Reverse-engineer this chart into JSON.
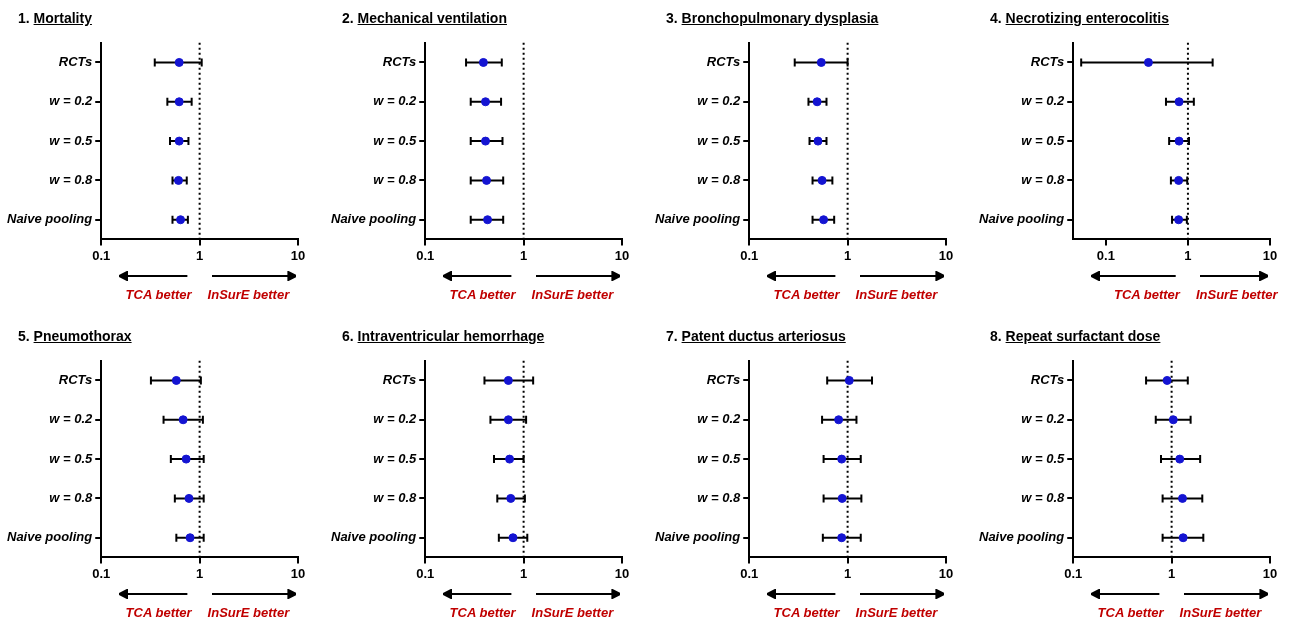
{
  "chart_data": [
    {
      "type": "scatter",
      "title": "1. Mortality",
      "orientation": "horizontal",
      "categories": [
        "RCTs",
        "w = 0.2",
        "w = 0.5",
        "w = 0.8",
        "Naive pooling"
      ],
      "values": [
        0.62,
        0.62,
        0.62,
        0.61,
        0.64
      ],
      "errors": [
        [
          0.35,
          1.05
        ],
        [
          0.47,
          0.83
        ],
        [
          0.5,
          0.77
        ],
        [
          0.53,
          0.74
        ],
        [
          0.53,
          0.76
        ]
      ],
      "color": "#1414d2",
      "marker": "circle",
      "log": "x",
      "xlim": [
        0.1,
        10
      ],
      "xticks": [
        0.1,
        1,
        10
      ],
      "grid": false,
      "legend": false,
      "ref_lines": [
        {
          "axis": "x",
          "value": 1,
          "line_style": "dotted",
          "color": "#000000"
        }
      ],
      "annotations": [
        "TCA better",
        "InSurE better"
      ]
    },
    {
      "type": "scatter",
      "title": "2. Mechanical ventilation",
      "orientation": "horizontal",
      "categories": [
        "RCTs",
        "w = 0.2",
        "w = 0.5",
        "w = 0.8",
        "Naive pooling"
      ],
      "values": [
        0.39,
        0.41,
        0.41,
        0.42,
        0.43
      ],
      "errors": [
        [
          0.26,
          0.6
        ],
        [
          0.29,
          0.59
        ],
        [
          0.29,
          0.61
        ],
        [
          0.29,
          0.62
        ],
        [
          0.29,
          0.62
        ]
      ],
      "color": "#1414d2",
      "marker": "circle",
      "log": "x",
      "xlim": [
        0.1,
        10
      ],
      "xticks": [
        0.1,
        1,
        10
      ],
      "grid": false,
      "legend": false,
      "ref_lines": [
        {
          "axis": "x",
          "value": 1,
          "line_style": "dotted",
          "color": "#000000"
        }
      ],
      "annotations": [
        "TCA better",
        "InSurE better"
      ]
    },
    {
      "type": "scatter",
      "title": "3. Bronchopulmonary dysplasia",
      "orientation": "horizontal",
      "categories": [
        "RCTs",
        "w = 0.2",
        "w = 0.5",
        "w = 0.8",
        "Naive pooling"
      ],
      "values": [
        0.54,
        0.49,
        0.5,
        0.55,
        0.57
      ],
      "errors": [
        [
          0.29,
          1.0
        ],
        [
          0.4,
          0.61
        ],
        [
          0.41,
          0.61
        ],
        [
          0.44,
          0.7
        ],
        [
          0.44,
          0.73
        ]
      ],
      "color": "#1414d2",
      "marker": "circle",
      "log": "x",
      "xlim": [
        0.1,
        10
      ],
      "xticks": [
        0.1,
        1,
        10
      ],
      "grid": false,
      "legend": false,
      "ref_lines": [
        {
          "axis": "x",
          "value": 1,
          "line_style": "dotted",
          "color": "#000000"
        }
      ],
      "annotations": [
        "TCA better",
        "InSurE better"
      ]
    },
    {
      "type": "scatter",
      "title": "4. Necrotizing enterocolitis",
      "orientation": "horizontal",
      "categories": [
        "RCTs",
        "w = 0.2",
        "w = 0.5",
        "w = 0.8",
        "Naive pooling"
      ],
      "values": [
        0.33,
        0.78,
        0.78,
        0.77,
        0.77
      ],
      "errors": [
        [
          0.05,
          2.0
        ],
        [
          0.54,
          1.18
        ],
        [
          0.59,
          1.03
        ],
        [
          0.62,
          0.98
        ],
        [
          0.64,
          0.97
        ]
      ],
      "color": "#1414d2",
      "marker": "circle",
      "log": "x",
      "xlim": [
        0.04,
        10
      ],
      "xticks": [
        0.1,
        1,
        10
      ],
      "grid": false,
      "legend": false,
      "ref_lines": [
        {
          "axis": "x",
          "value": 1,
          "line_style": "dotted",
          "color": "#000000"
        }
      ],
      "annotations": [
        "TCA better",
        "InSurE better"
      ]
    },
    {
      "type": "scatter",
      "title": "5. Pneumothorax",
      "orientation": "horizontal",
      "categories": [
        "RCTs",
        "w = 0.2",
        "w = 0.5",
        "w = 0.8",
        "Naive pooling"
      ],
      "values": [
        0.58,
        0.68,
        0.73,
        0.78,
        0.8
      ],
      "errors": [
        [
          0.32,
          1.03
        ],
        [
          0.43,
          1.08
        ],
        [
          0.51,
          1.1
        ],
        [
          0.56,
          1.1
        ],
        [
          0.58,
          1.1
        ]
      ],
      "color": "#1414d2",
      "marker": "circle",
      "log": "x",
      "xlim": [
        0.1,
        10
      ],
      "xticks": [
        0.1,
        1,
        10
      ],
      "grid": false,
      "legend": false,
      "ref_lines": [
        {
          "axis": "x",
          "value": 1,
          "line_style": "dotted",
          "color": "#000000"
        }
      ],
      "annotations": [
        "TCA better",
        "InSurE better"
      ]
    },
    {
      "type": "scatter",
      "title": "6. Intraventricular hemorrhage",
      "orientation": "horizontal",
      "categories": [
        "RCTs",
        "w = 0.2",
        "w = 0.5",
        "w = 0.8",
        "Naive pooling"
      ],
      "values": [
        0.7,
        0.7,
        0.72,
        0.74,
        0.78
      ],
      "errors": [
        [
          0.4,
          1.25
        ],
        [
          0.46,
          1.06
        ],
        [
          0.5,
          1.0
        ],
        [
          0.54,
          1.03
        ],
        [
          0.56,
          1.09
        ]
      ],
      "color": "#1414d2",
      "marker": "circle",
      "log": "x",
      "xlim": [
        0.1,
        10
      ],
      "xticks": [
        0.1,
        1,
        10
      ],
      "grid": false,
      "legend": false,
      "ref_lines": [
        {
          "axis": "x",
          "value": 1,
          "line_style": "dotted",
          "color": "#000000"
        }
      ],
      "annotations": [
        "TCA better",
        "InSurE better"
      ]
    },
    {
      "type": "scatter",
      "title": "7. Patent ductus arteriosus",
      "orientation": "horizontal",
      "categories": [
        "RCTs",
        "w = 0.2",
        "w = 0.5",
        "w = 0.8",
        "Naive pooling"
      ],
      "values": [
        1.04,
        0.81,
        0.87,
        0.88,
        0.87
      ],
      "errors": [
        [
          0.62,
          1.77
        ],
        [
          0.55,
          1.23
        ],
        [
          0.57,
          1.36
        ],
        [
          0.57,
          1.38
        ],
        [
          0.56,
          1.36
        ]
      ],
      "color": "#1414d2",
      "marker": "circle",
      "log": "x",
      "xlim": [
        0.1,
        10
      ],
      "xticks": [
        0.1,
        1,
        10
      ],
      "grid": false,
      "legend": false,
      "ref_lines": [
        {
          "axis": "x",
          "value": 1,
          "line_style": "dotted",
          "color": "#000000"
        }
      ],
      "annotations": [
        "TCA better",
        "InSurE better"
      ]
    },
    {
      "type": "scatter",
      "title": "8. Repeat surfactant dose",
      "orientation": "horizontal",
      "categories": [
        "RCTs",
        "w = 0.2",
        "w = 0.5",
        "w = 0.8",
        "Naive pooling"
      ],
      "values": [
        0.9,
        1.04,
        1.21,
        1.29,
        1.31
      ],
      "errors": [
        [
          0.55,
          1.46
        ],
        [
          0.69,
          1.56
        ],
        [
          0.78,
          1.95
        ],
        [
          0.81,
          2.05
        ],
        [
          0.81,
          2.1
        ]
      ],
      "color": "#1414d2",
      "marker": "circle",
      "log": "x",
      "xlim": [
        0.1,
        10
      ],
      "xticks": [
        0.1,
        1,
        10
      ],
      "grid": false,
      "legend": false,
      "ref_lines": [
        {
          "axis": "x",
          "value": 1,
          "line_style": "dotted",
          "color": "#000000"
        }
      ],
      "annotations": [
        "TCA better",
        "InSurE better"
      ]
    }
  ]
}
